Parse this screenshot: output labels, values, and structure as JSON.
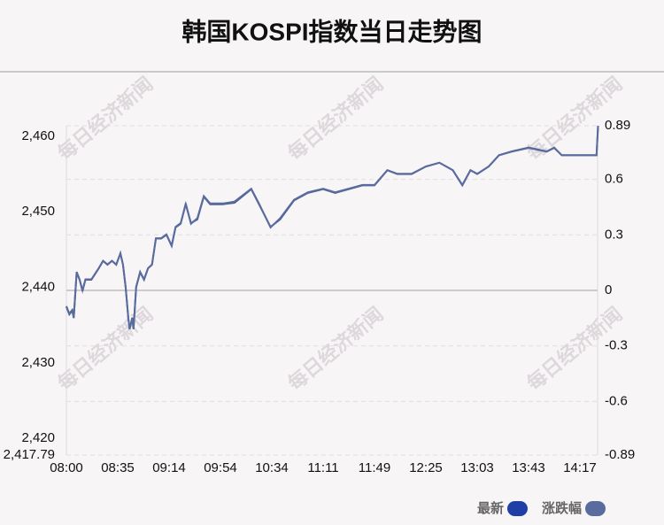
{
  "chart_data": {
    "type": "line",
    "title": "韩国KOSPI指数当日走势图",
    "watermark": "每日经济新闻",
    "x": [
      "08:00",
      "08:02",
      "08:04",
      "08:05",
      "08:07",
      "08:09",
      "08:11",
      "08:13",
      "08:17",
      "08:22",
      "08:25",
      "08:28",
      "08:31",
      "08:34",
      "08:37",
      "08:39",
      "08:41",
      "08:43",
      "08:44",
      "08:46",
      "08:47",
      "08:49",
      "08:52",
      "08:55",
      "08:58",
      "09:01",
      "09:04",
      "09:08",
      "09:12",
      "09:16",
      "09:19",
      "09:23",
      "09:27",
      "09:31",
      "09:36",
      "09:41",
      "09:46",
      "09:56",
      "10:05",
      "10:18",
      "10:24",
      "10:33",
      "10:40",
      "10:50",
      "11:00",
      "11:11",
      "11:20",
      "11:30",
      "11:40",
      "11:49",
      "11:58",
      "12:05",
      "12:15",
      "12:25",
      "12:35",
      "12:45",
      "12:52",
      "12:58",
      "13:03",
      "13:12",
      "13:20",
      "13:30",
      "13:43",
      "13:55",
      "14:00",
      "14:05",
      "14:17",
      "14:28",
      "14:29"
    ],
    "series": [
      {
        "name": "最新",
        "color": "#1f3ea6",
        "values": [
          2437.5,
          2436.5,
          2437,
          2436,
          2442,
          2441,
          2439.5,
          2441,
          2441,
          2442.5,
          2443.5,
          2443,
          2443.5,
          2443,
          2444.5,
          2443,
          2440,
          2436,
          2434.5,
          2436,
          2434.5,
          2440,
          2442,
          2441,
          2442.5,
          2443,
          2446.5,
          2446.5,
          2447,
          2445.5,
          2448,
          2448.5,
          2451,
          2448.5,
          2449,
          2452,
          2451,
          2451,
          2451.2,
          2453,
          2451,
          2448,
          2449,
          2451.5,
          2452.5,
          2453,
          2452.5,
          2453,
          2453.5,
          2453.5,
          2455.5,
          2455,
          2455,
          2456,
          2456.5,
          2455.5,
          2453.5,
          2455.5,
          2455,
          2456,
          2457.5,
          2458,
          2458.5,
          2458,
          2458.5,
          2457.5,
          2457.5,
          2457.5,
          2461.3
        ]
      },
      {
        "name": "涨跌幅",
        "color": "#5a6c9e",
        "axis": "y2",
        "values": [
          -0.09,
          -0.13,
          -0.11,
          -0.15,
          0.1,
          0.06,
          0.0,
          0.06,
          0.06,
          0.12,
          0.16,
          0.14,
          0.16,
          0.14,
          0.2,
          0.14,
          0.02,
          -0.15,
          -0.21,
          -0.15,
          -0.21,
          0.02,
          0.1,
          0.06,
          0.12,
          0.14,
          0.28,
          0.28,
          0.3,
          0.24,
          0.34,
          0.36,
          0.47,
          0.36,
          0.39,
          0.51,
          0.47,
          0.47,
          0.48,
          0.55,
          0.47,
          0.34,
          0.39,
          0.49,
          0.53,
          0.55,
          0.53,
          0.55,
          0.57,
          0.57,
          0.65,
          0.63,
          0.63,
          0.67,
          0.69,
          0.65,
          0.57,
          0.65,
          0.63,
          0.67,
          0.73,
          0.75,
          0.77,
          0.75,
          0.77,
          0.73,
          0.73,
          0.73,
          0.89
        ]
      }
    ],
    "xlim": [
      "08:00",
      "14:29"
    ],
    "xticks": [
      "08:00",
      "08:35",
      "09:14",
      "09:54",
      "10:34",
      "11:11",
      "11:49",
      "12:25",
      "13:03",
      "13:43",
      "14:17"
    ],
    "ylim": [
      2417.79,
      2461.4
    ],
    "yticks": [
      {
        "value": 2417.79,
        "label": "2,417.79"
      },
      {
        "value": 2420,
        "label": "2,420"
      },
      {
        "value": 2430,
        "label": "2,430"
      },
      {
        "value": 2440,
        "label": "2,440"
      },
      {
        "value": 2450,
        "label": "2,450"
      },
      {
        "value": 2460,
        "label": "2,460"
      }
    ],
    "y2lim": [
      -0.89,
      0.89
    ],
    "y2ticks": [
      -0.89,
      -0.6,
      -0.3,
      0,
      0.3,
      0.6,
      0.89
    ],
    "grid": true
  }
}
